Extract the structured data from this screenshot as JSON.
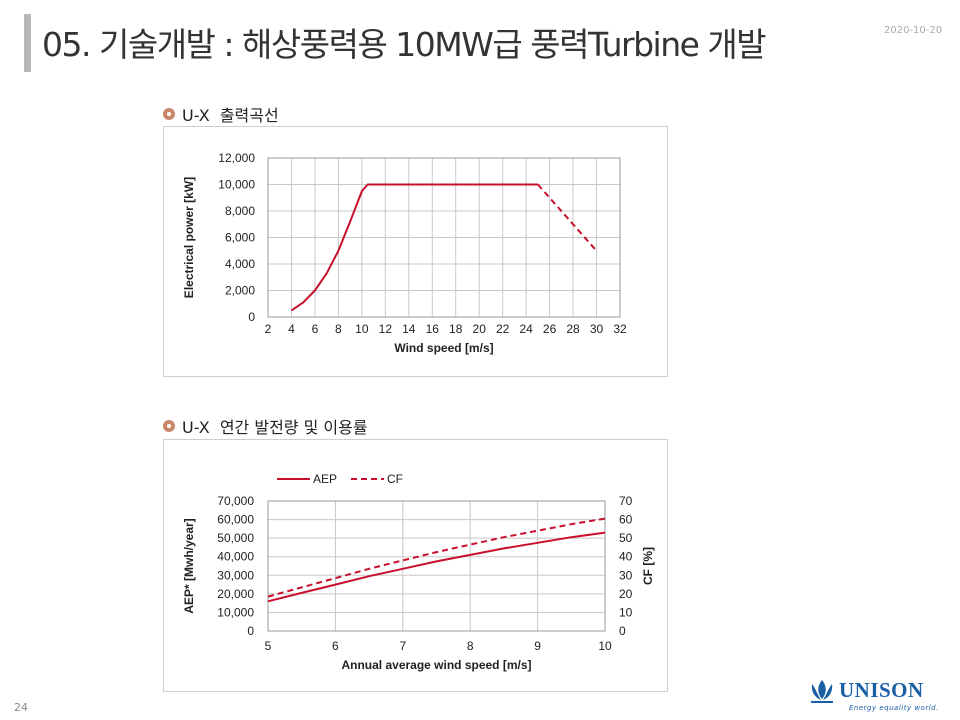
{
  "header": {
    "title": "05. 기술개발 : 해상풍력용 10MW급 풍력Turbine 개발",
    "date": "2020-10-20"
  },
  "sections": [
    {
      "heading": "U-X  출력곡선"
    },
    {
      "heading": "U-X  연간 발전량 및 이용률"
    }
  ],
  "chart_data": [
    {
      "type": "line",
      "xlabel": "Wind speed [m/s]",
      "ylabel": "Electrical power [kW]",
      "xlim": [
        2,
        32
      ],
      "ylim": [
        0,
        12000
      ],
      "x_ticks": [
        "2",
        "4",
        "6",
        "8",
        "10",
        "12",
        "14",
        "16",
        "18",
        "20",
        "22",
        "24",
        "26",
        "28",
        "30",
        "32"
      ],
      "y_ticks": [
        "0",
        "2,000",
        "4,000",
        "6,000",
        "8,000",
        "10,000",
        "12,000"
      ],
      "grid": true,
      "series": [
        {
          "style": "solid",
          "color": "#c8102e",
          "x": [
            4,
            5,
            6,
            7,
            8,
            9,
            10,
            10.5,
            11,
            25
          ],
          "y": [
            500,
            1100,
            2000,
            3300,
            5000,
            7200,
            9500,
            10000,
            10000,
            10000
          ]
        },
        {
          "style": "dashed",
          "color": "#c8102e",
          "x": [
            25,
            30
          ],
          "y": [
            10000,
            5000
          ]
        }
      ]
    },
    {
      "type": "line",
      "xlabel": "Annual average wind speed [m/s]",
      "ylabel": "AEP* [Mwh/year]",
      "y2label": "CF [%]",
      "xlim": [
        5,
        10
      ],
      "ylim": [
        0,
        70000
      ],
      "y2lim": [
        0,
        70
      ],
      "x_ticks": [
        "5",
        "6",
        "7",
        "8",
        "9",
        "10"
      ],
      "y_ticks": [
        "0",
        "10,000",
        "20,000",
        "30,000",
        "40,000",
        "50,000",
        "60,000",
        "70,000"
      ],
      "y2_ticks": [
        "0",
        "10",
        "20",
        "30",
        "40",
        "50",
        "60",
        "70"
      ],
      "grid": true,
      "legend_position": "top-left",
      "series": [
        {
          "name": "AEP",
          "style": "solid",
          "color": "#c8102e",
          "axis": "left",
          "x": [
            5,
            5.5,
            6,
            6.5,
            7,
            7.5,
            8,
            8.5,
            9,
            9.5,
            10
          ],
          "y": [
            16000,
            20500,
            25000,
            29500,
            33500,
            37500,
            41000,
            44500,
            47500,
            50500,
            53000
          ]
        },
        {
          "name": "CF",
          "style": "dashed",
          "color": "#c8102e",
          "axis": "right",
          "x": [
            5,
            5.5,
            6,
            6.5,
            7,
            7.5,
            8,
            8.5,
            9,
            9.5,
            10
          ],
          "y": [
            18.5,
            23.5,
            28.5,
            33.5,
            38,
            42.5,
            46.5,
            50.5,
            54,
            57.5,
            60.5
          ]
        }
      ]
    }
  ],
  "footer": {
    "page_number": "24",
    "logo_text": "UNISON",
    "tagline": "Energy equality world."
  },
  "colors": {
    "accent": "#c8102e",
    "bullet": "#c9866a",
    "brand": "#1a5fa6"
  }
}
